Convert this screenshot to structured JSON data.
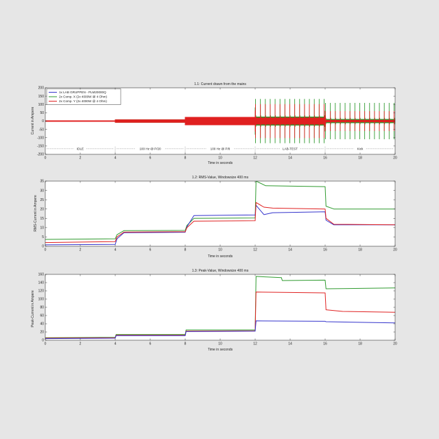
{
  "chart_data": [
    {
      "type": "line",
      "title": "1.1: Current drawn from the mains",
      "xlabel": "Time in seconds",
      "ylabel": "Current in Ampere",
      "xlim": [
        0,
        20
      ],
      "ylim": [
        -200,
        200
      ],
      "xticks": [
        0,
        2,
        4,
        6,
        8,
        10,
        12,
        14,
        16,
        18,
        20
      ],
      "yticks": [
        -200,
        -150,
        -100,
        -50,
        0,
        50,
        100,
        150,
        200
      ],
      "grid": false,
      "legend_position": "top-left",
      "series": [
        {
          "name": "1x LAB GRUPPEN - PLM20000Q",
          "color": "#3333cc",
          "envelope": [
            [
              0,
              4,
              3
            ],
            [
              4,
              8,
              6
            ],
            [
              8,
              12,
              18
            ],
            [
              12,
              16,
              25
            ],
            [
              16,
              20,
              15
            ]
          ]
        },
        {
          "name": "2x Comp. X (2x 4000W @ 4 Ohm)",
          "color": "#2e9a2e",
          "envelope": [
            [
              0,
              4,
              4
            ],
            [
              4,
              8,
              10
            ],
            [
              8,
              12,
              22
            ],
            [
              12,
              16,
              150
            ],
            [
              16,
              20,
              125
            ]
          ]
        },
        {
          "name": "2x Comp. Y (2x 4000W @ 4 Ohm)",
          "color": "#e02020",
          "envelope": [
            [
              0,
              4,
              4
            ],
            [
              4,
              8,
              10
            ],
            [
              8,
              12,
              25
            ],
            [
              12,
              16,
              115
            ],
            [
              16,
              20,
              68
            ]
          ]
        }
      ],
      "segments": [
        {
          "label": "IDLE",
          "x_start": 0,
          "x_end": 4
        },
        {
          "label": "100 Hz @ P/20",
          "x_start": 4,
          "x_end": 8
        },
        {
          "label": "100 Hz @ P/8",
          "x_start": 8,
          "x_end": 12
        },
        {
          "label": "LAB-TEST",
          "x_start": 12,
          "x_end": 16
        },
        {
          "label": "Kick",
          "x_start": 16,
          "x_end": 20
        }
      ]
    },
    {
      "type": "line",
      "title": "1.2: RMS-Value, Windowsize 400 ms",
      "xlabel": "Time in seconds",
      "ylabel": "RMS-Current in Ampere",
      "xlim": [
        0,
        20
      ],
      "ylim": [
        0,
        35
      ],
      "xticks": [
        0,
        2,
        4,
        6,
        8,
        10,
        12,
        14,
        16,
        18,
        20
      ],
      "yticks": [
        0,
        5,
        10,
        15,
        20,
        25,
        30,
        35
      ],
      "grid": false,
      "series": [
        {
          "color": "#2e9a2e",
          "x": [
            0,
            4,
            4.1,
            4.5,
            8,
            8.1,
            8.5,
            12,
            12.05,
            12.6,
            16,
            16.05,
            16.5,
            20
          ],
          "y": [
            3.7,
            4,
            6.2,
            8.4,
            8.5,
            11.2,
            15,
            15.2,
            35,
            32.5,
            32,
            21.5,
            20,
            20
          ]
        },
        {
          "color": "#3333cc",
          "x": [
            0,
            4,
            4.1,
            4.5,
            8,
            8.1,
            8.5,
            12,
            12.05,
            12.5,
            13,
            16,
            16.05,
            16.5,
            20
          ],
          "y": [
            0.8,
            1,
            4,
            7.3,
            7.5,
            10.5,
            16.5,
            16.8,
            22,
            17,
            18,
            18.5,
            14,
            11.5,
            11.5
          ]
        },
        {
          "color": "#e02020",
          "x": [
            0,
            4,
            4.1,
            4.5,
            8,
            8.1,
            8.5,
            12,
            12.05,
            12.5,
            13,
            16,
            16.05,
            16.5,
            20
          ],
          "y": [
            2,
            2.5,
            5,
            7.6,
            7.8,
            10,
            13.5,
            13.7,
            23.5,
            21,
            20.5,
            20,
            15,
            11.8,
            11.5
          ]
        }
      ]
    },
    {
      "type": "line",
      "title": "1.3: Peak-Value, Windowsize 400 ms",
      "xlabel": "Time in seconds",
      "ylabel": "Peak-Current in Ampere",
      "xlim": [
        0,
        20
      ],
      "ylim": [
        0,
        160
      ],
      "xticks": [
        0,
        2,
        4,
        6,
        8,
        10,
        12,
        14,
        16,
        18,
        20
      ],
      "yticks": [
        0,
        20,
        40,
        60,
        80,
        100,
        120,
        140,
        160
      ],
      "grid": false,
      "series": [
        {
          "color": "#2e9a2e",
          "x": [
            0,
            4,
            4.05,
            8,
            8.05,
            12,
            12.05,
            13.5,
            13.55,
            16,
            16.05,
            20
          ],
          "y": [
            6,
            7,
            14,
            14,
            25,
            25,
            155,
            152,
            145,
            146,
            125,
            127
          ]
        },
        {
          "color": "#e02020",
          "x": [
            0,
            4,
            4.05,
            8,
            8.05,
            12,
            12.05,
            16,
            16.05,
            17,
            20
          ],
          "y": [
            5,
            6,
            12,
            12,
            22,
            23,
            117,
            115,
            74,
            70,
            68
          ]
        },
        {
          "color": "#3333cc",
          "x": [
            0,
            4,
            4.05,
            8,
            8.05,
            12,
            12.05,
            16,
            16.05,
            20
          ],
          "y": [
            4,
            5,
            11,
            11,
            21,
            22,
            47,
            46,
            45,
            42
          ]
        }
      ]
    }
  ]
}
